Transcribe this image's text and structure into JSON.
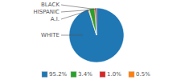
{
  "chart_data": {
    "type": "pie",
    "categories": [
      "WHITE",
      "A.I.",
      "HISPANIC",
      "BLACK"
    ],
    "values": [
      95.2,
      0.5,
      3.4,
      1.0
    ],
    "value_labels": [
      "95.2%",
      "0.5%",
      "3.4%",
      "1.0%"
    ],
    "legend": "bottom"
  }
}
